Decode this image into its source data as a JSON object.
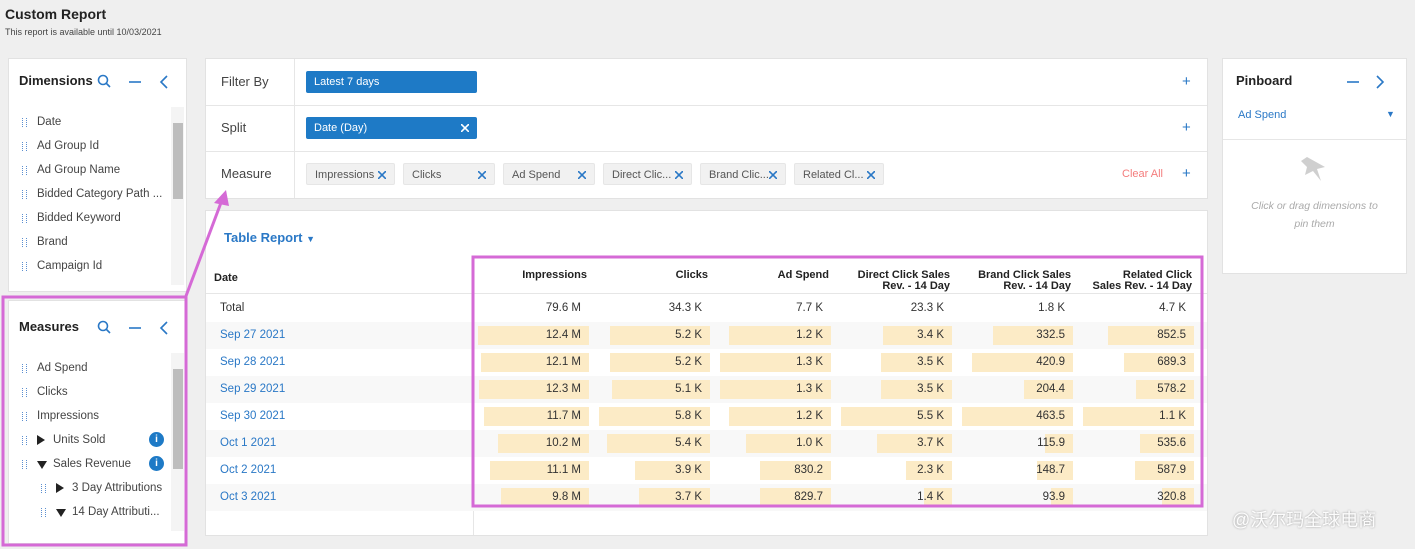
{
  "header": {
    "title": "Custom Report",
    "subtitle": "This report is available until 10/03/2021"
  },
  "dimensions": {
    "title": "Dimensions",
    "items": [
      "Date",
      "Ad Group Id",
      "Ad Group Name",
      "Bidded Category Path ...",
      "Bidded Keyword",
      "Brand",
      "Campaign Id"
    ]
  },
  "measures_panel": {
    "title": "Measures",
    "items": [
      {
        "label": "Ad Spend"
      },
      {
        "label": "Clicks"
      },
      {
        "label": "Impressions"
      },
      {
        "label": "Units Sold",
        "expanded": false
      },
      {
        "label": "Sales Revenue",
        "expanded": true,
        "children": [
          {
            "label": "3 Day Attributions",
            "expanded": false
          },
          {
            "label": "14 Day Attributi...",
            "expanded": true
          }
        ]
      }
    ]
  },
  "filters": {
    "rows": [
      {
        "label": "Filter By",
        "chips": [
          "Latest 7 days"
        ]
      },
      {
        "label": "Split",
        "chips": [
          "Date (Day)"
        ],
        "removable": true
      },
      {
        "label": "Measure",
        "chips": [
          "Impressions",
          "Clicks",
          "Ad Spend",
          "Direct Clic...",
          "Brand Clic...",
          "Related Cl..."
        ],
        "removable": true,
        "action": "Clear All"
      }
    ]
  },
  "table_report": {
    "title": "Table Report",
    "columns": [
      "Date",
      "Impressions",
      "Clicks",
      "Ad Spend",
      "Direct Click Sales Rev. - 14 Day",
      "Brand Click Sales Rev. - 14 Day",
      "Related Click Sales Rev. - 14 Day"
    ],
    "total": [
      "Total",
      "79.6 M",
      "34.3 K",
      "7.7 K",
      "23.3 K",
      "1.8 K",
      "4.7 K"
    ],
    "rows": [
      [
        "Sep 27 2021",
        "12.4 M",
        "5.2 K",
        "1.2 K",
        "3.4 K",
        "332.5",
        "852.5"
      ],
      [
        "Sep 28 2021",
        "12.1 M",
        "5.2 K",
        "1.3 K",
        "3.5 K",
        "420.9",
        "689.3"
      ],
      [
        "Sep 29 2021",
        "12.3 M",
        "5.1 K",
        "1.3 K",
        "3.5 K",
        "204.4",
        "578.2"
      ],
      [
        "Sep 30 2021",
        "11.7 M",
        "5.8 K",
        "1.2 K",
        "5.5 K",
        "463.5",
        "1.1 K"
      ],
      [
        "Oct 1 2021",
        "10.2 M",
        "5.4 K",
        "1.0 K",
        "3.7 K",
        "115.9",
        "535.6"
      ],
      [
        "Oct 2 2021",
        "11.1 M",
        "3.9 K",
        "830.2",
        "2.3 K",
        "148.7",
        "587.9"
      ],
      [
        "Oct 3 2021",
        "9.8 M",
        "3.7 K",
        "829.7",
        "1.4 K",
        "93.9",
        "320.8"
      ]
    ]
  },
  "pinboard": {
    "title": "Pinboard",
    "selected": "Ad Spend",
    "hint": "Click or drag dimensions to pin them"
  },
  "watermark": "@沃尔玛全球电商"
}
